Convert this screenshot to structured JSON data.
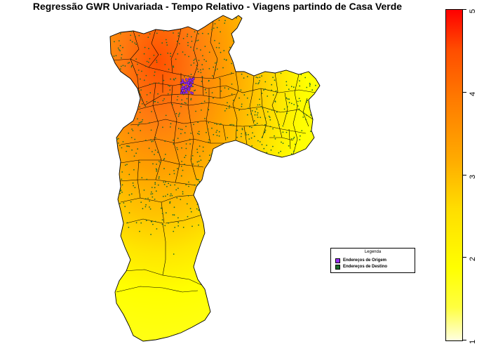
{
  "title": "Regressão GWR Univariada - Tempo Relativo - Viagens partindo de Casa Verde",
  "legend": {
    "title": "Legenda",
    "items": [
      {
        "label": "Endereços de Origem",
        "color": "#9b30ff"
      },
      {
        "label": "Endereços de Destino",
        "color": "#1a6b2a"
      }
    ]
  },
  "colorbar": {
    "min": 1,
    "max": 5,
    "ticks": [
      "1",
      "2",
      "3",
      "4",
      "5"
    ],
    "colors": [
      "#ffffe0",
      "#ffff00",
      "#ffaa00",
      "#ff4d00",
      "#ff0000"
    ]
  }
}
